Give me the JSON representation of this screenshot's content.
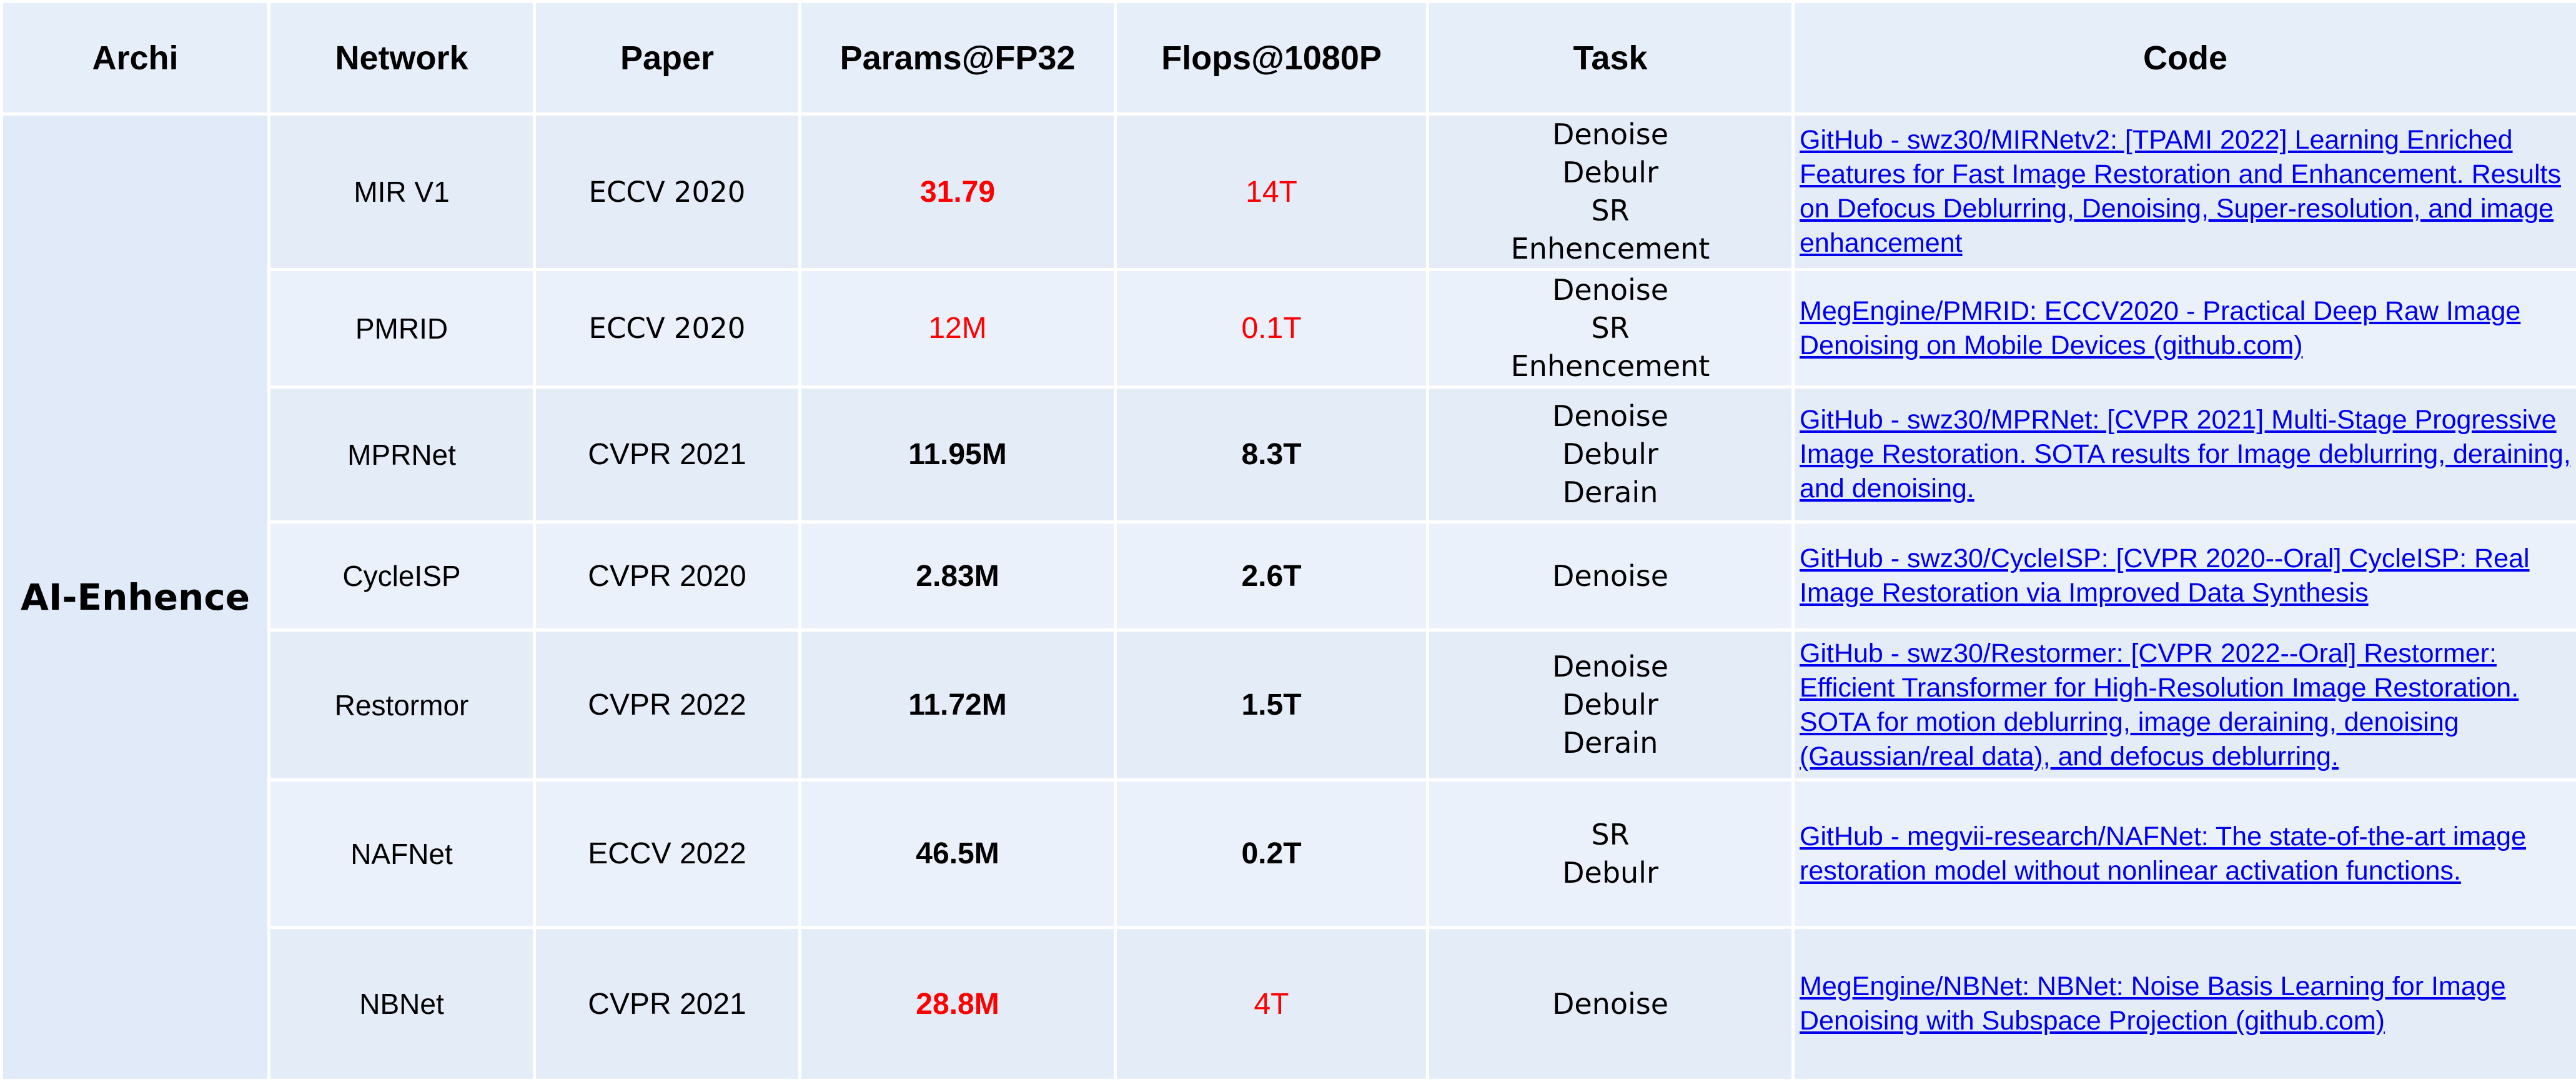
{
  "headers": [
    "Archi",
    "Network",
    "Paper",
    "Params@FP32",
    "Flops@1080P",
    "Task",
    "Code"
  ],
  "archi": "AI-Enhence",
  "colors": {
    "red": "#ff0000",
    "link": "#0000ee",
    "cell_bg": "#e4ecf8"
  },
  "rows": [
    {
      "network": "MIR V1",
      "paper": "ECCV 2020",
      "params": "31.79",
      "flops": "14T",
      "task": [
        "Denoise",
        "Debulr",
        "SR",
        "Enhencement"
      ],
      "code": "GitHub - swz30/MIRNetv2: [TPAMI 2022] Learning Enriched Features for Fast Image Restoration and Enhancement. Results on Defocus Deblurring, Denoising, Super-resolution, and image enhancement"
    },
    {
      "network": "PMRID",
      "paper": "ECCV 2020",
      "params": "12M",
      "flops": "0.1T",
      "task": [
        "Denoise",
        "SR",
        "Enhencement"
      ],
      "code": "MegEngine/PMRID: ECCV2020 - Practical Deep Raw Image Denoising on Mobile Devices (github.com)"
    },
    {
      "network": "MPRNet",
      "paper": "CVPR 2021",
      "params": "11.95M",
      "flops": "8.3T",
      "task": [
        "Denoise",
        "Debulr",
        "Derain"
      ],
      "code": "GitHub - swz30/MPRNet: [CVPR 2021] Multi-Stage Progressive Image Restoration. SOTA results for Image deblurring, deraining, and denoising."
    },
    {
      "network": "CycleISP",
      "paper": "CVPR 2020",
      "params": "2.83M",
      "flops": "2.6T",
      "task": [
        "Denoise"
      ],
      "code": "GitHub - swz30/CycleISP: [CVPR 2020--Oral] CycleISP: Real Image Restoration via Improved Data Synthesis"
    },
    {
      "network": "Restormor",
      "paper": "CVPR 2022",
      "params": "11.72M",
      "flops": "1.5T",
      "task": [
        "Denoise",
        "Debulr",
        "Derain"
      ],
      "code": "GitHub - swz30/Restormer: [CVPR 2022--Oral] Restormer: Efficient Transformer for High-Resolution Image Restoration. SOTA for motion deblurring, image deraining, denoising (Gaussian/real data), and defocus deblurring."
    },
    {
      "network": "NAFNet",
      "paper": "ECCV 2022",
      "params": "46.5M",
      "flops": "0.2T",
      "task": [
        "SR",
        "Debulr"
      ],
      "code": "GitHub - megvii-research/NAFNet: The state-of-the-art image restoration model without nonlinear activation functions."
    },
    {
      "network": "NBNet",
      "paper": "CVPR 2021",
      "params": "28.8M",
      "flops": "4T",
      "task": [
        "Denoise"
      ],
      "code": "MegEngine/NBNet: NBNet: Noise Basis Learning for Image Denoising with Subspace Projection (github.com)"
    }
  ]
}
